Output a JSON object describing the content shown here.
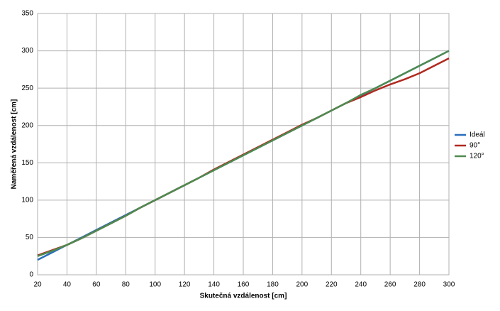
{
  "chart_data": {
    "type": "line",
    "xlabel": "Skutečná vzdálenost [cm]",
    "ylabel": "Naměřená vzdálenost [cm]",
    "x": [
      20,
      30,
      40,
      50,
      60,
      70,
      80,
      90,
      100,
      110,
      120,
      130,
      140,
      150,
      160,
      170,
      180,
      190,
      200,
      210,
      220,
      230,
      240,
      250,
      260,
      270,
      280,
      290,
      300
    ],
    "series": [
      {
        "name": "Ideál",
        "color": "#2a6ebd",
        "values": [
          20,
          30,
          40,
          50,
          60,
          70,
          80,
          90,
          100,
          110,
          120,
          130,
          140,
          150,
          160,
          170,
          180,
          190,
          200,
          210,
          220,
          230,
          240,
          250,
          260,
          270,
          280,
          290,
          300
        ]
      },
      {
        "name": "90°",
        "color": "#b02a20",
        "values": [
          26,
          33,
          40,
          49,
          59,
          69,
          79,
          90,
          100,
          110,
          120,
          130,
          141,
          151,
          161,
          171,
          181,
          191,
          201,
          210,
          220,
          230,
          238,
          247,
          255,
          262,
          270,
          280,
          290
        ]
      },
      {
        "name": "120°",
        "color": "#4f8a4f",
        "values": [
          25,
          32,
          40,
          49,
          59,
          69,
          79,
          90,
          100,
          110,
          120,
          130,
          140,
          150,
          160,
          170,
          180,
          190,
          200,
          210,
          220,
          230,
          241,
          250,
          260,
          270,
          280,
          290,
          300
        ]
      }
    ],
    "xlim": [
      20,
      300
    ],
    "xticks": [
      20,
      40,
      60,
      80,
      100,
      120,
      140,
      160,
      180,
      200,
      220,
      240,
      260,
      280,
      300
    ],
    "ylim": [
      0,
      350
    ],
    "yticks": [
      0,
      50,
      100,
      150,
      200,
      250,
      300,
      350
    ],
    "grid": true,
    "legend": "right"
  }
}
